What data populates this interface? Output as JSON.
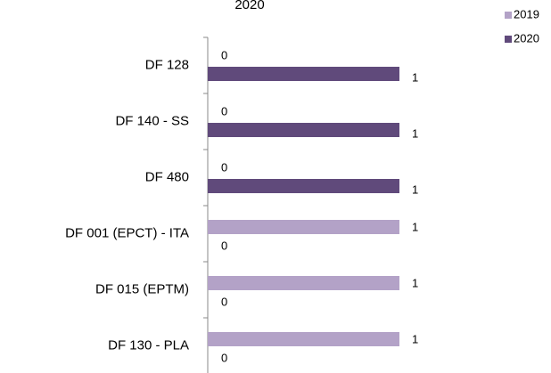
{
  "chart_data": {
    "type": "bar",
    "orientation": "horizontal",
    "title": "2020",
    "categories": [
      "DF 128",
      "DF 140 - SS",
      "DF 480",
      "DF 001 (EPCT) - ITA",
      "DF 015 (EPTM)",
      "DF 130 - PLA"
    ],
    "series": [
      {
        "name": "2019",
        "color": "#b3a2c7",
        "values": [
          0,
          0,
          0,
          1,
          1,
          1
        ]
      },
      {
        "name": "2020",
        "color": "#604a7b",
        "values": [
          1,
          1,
          1,
          0,
          0,
          0
        ]
      }
    ],
    "xlim": [
      0,
      1
    ],
    "legend": "top-right"
  }
}
